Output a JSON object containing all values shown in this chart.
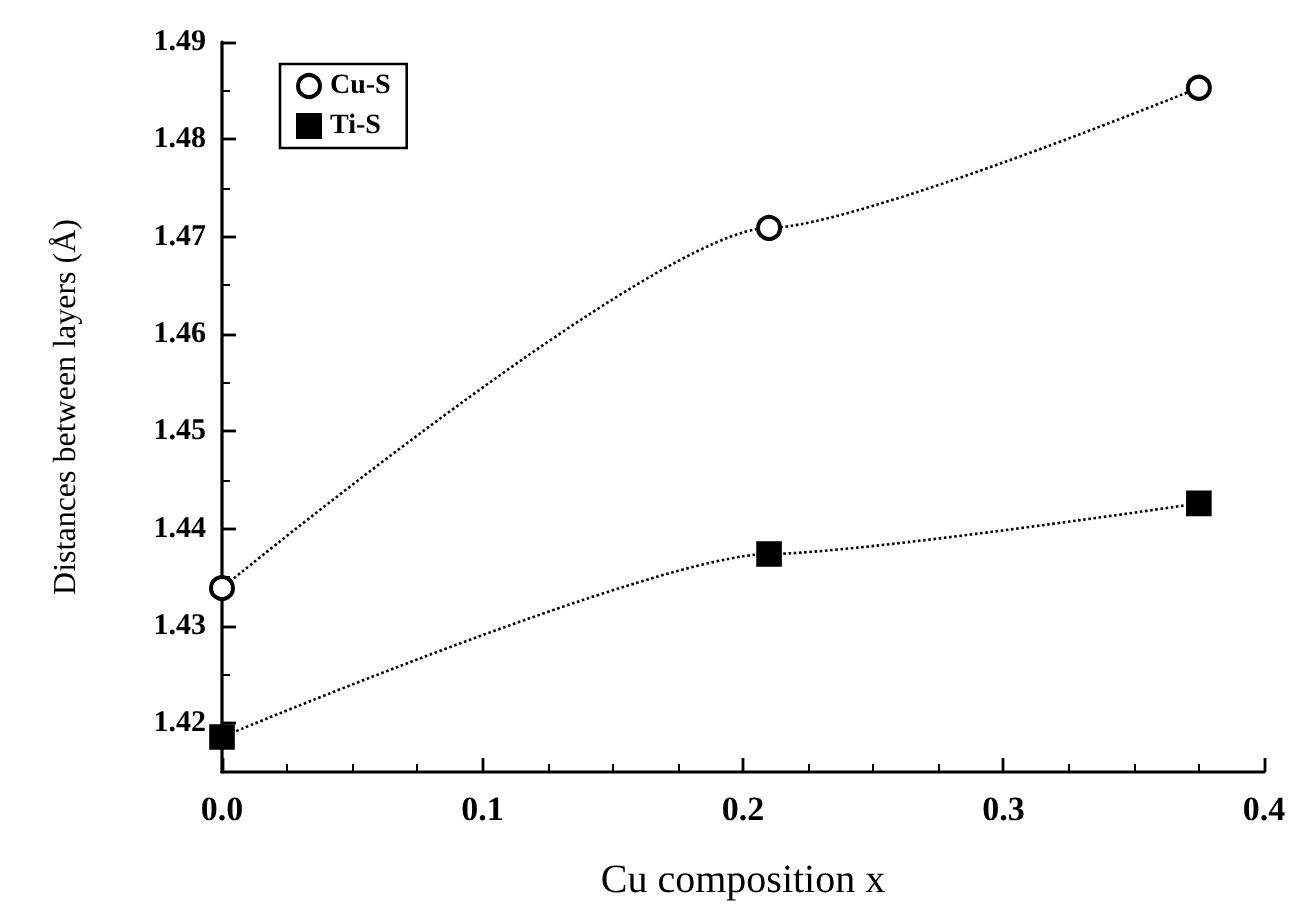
{
  "chart_data": {
    "type": "line",
    "xlabel": "Cu composition x",
    "ylabel": "Distances between layers (Å)",
    "x": [
      0,
      0.21,
      0.375
    ],
    "series": [
      {
        "name": "Cu-S",
        "color": "#000000",
        "marker": "circle",
        "values": [
          1.4339,
          1.4709,
          1.4853
        ]
      },
      {
        "name": "Ti-S",
        "color": "#000000",
        "marker": "square",
        "values": [
          1.4186,
          1.4374,
          1.4426
        ]
      }
    ],
    "xlim": [
      0,
      0.4
    ],
    "xticks": [
      {
        "value": 0,
        "label": "0.0"
      },
      0.1,
      0.2,
      0.3,
      0.4
    ],
    "ylim": [
      1.415,
      1.49
    ],
    "yticks": [
      1.42,
      1.43,
      1.44,
      1.45,
      1.46,
      1.47,
      1.48,
      1.49
    ],
    "line_style": "dotted",
    "legend": "top left",
    "grid": false
  }
}
